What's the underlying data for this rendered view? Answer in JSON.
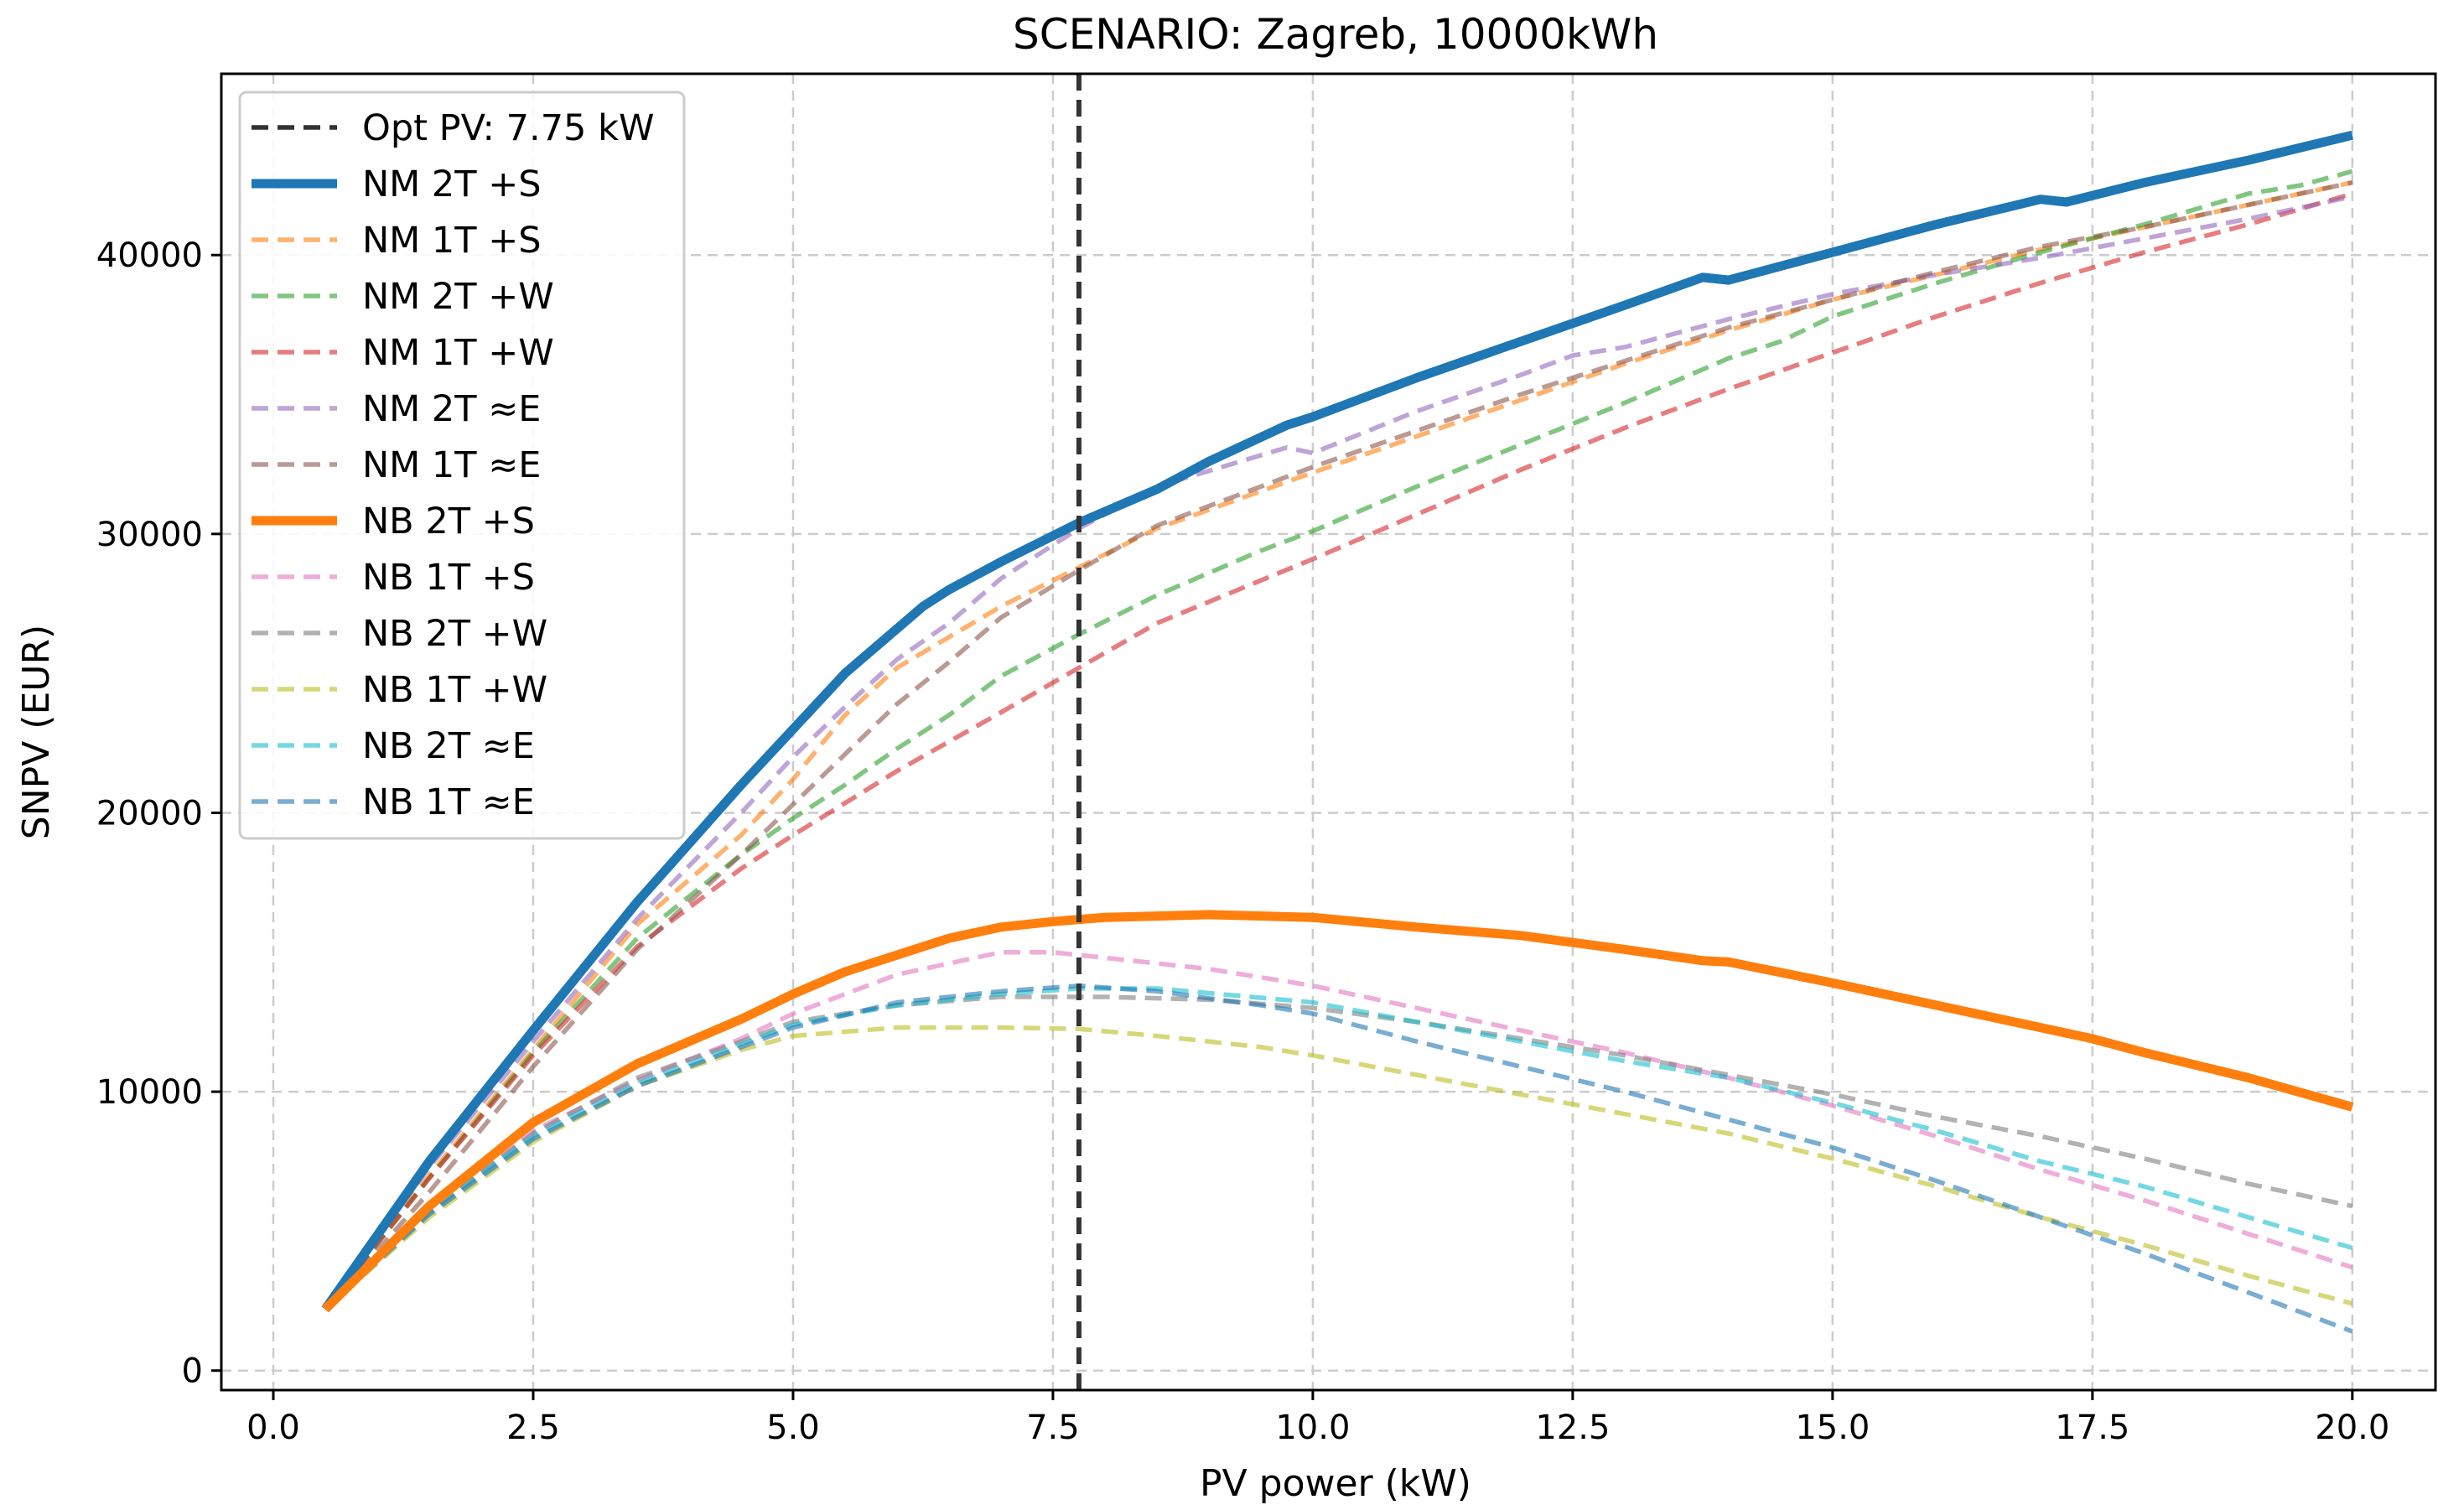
{
  "chart_data": {
    "type": "line",
    "title": "SCENARIO: Zagreb, 10000kWh",
    "xlabel": "PV power (kW)",
    "ylabel": "SNPV (EUR)",
    "xlim": [
      -0.5,
      20.8
    ],
    "ylim": [
      -700,
      46500
    ],
    "xticks": [
      0,
      2.5,
      5,
      7.5,
      10,
      12.5,
      15,
      17.5,
      20
    ],
    "xtick_labels": [
      "0.0",
      "2.5",
      "5.0",
      "7.5",
      "10.0",
      "12.5",
      "15.0",
      "17.5",
      "20.0"
    ],
    "yticks": [
      0,
      10000,
      20000,
      30000,
      40000
    ],
    "ytick_labels": [
      "0",
      "10000",
      "20000",
      "30000",
      "40000"
    ],
    "grid": true,
    "legend_position": "upper-left",
    "opt_line": {
      "label": "Opt PV: 7.75 kW",
      "x": 7.75,
      "color": "#333333"
    },
    "series": [
      {
        "name": "NM 2T +S",
        "color": "#1f77b4",
        "style": "solid",
        "x": [
          0.5,
          1.5,
          2.5,
          3.5,
          4.5,
          5.0,
          5.5,
          6.25,
          6.5,
          7.0,
          7.75,
          8.5,
          9.0,
          9.75,
          10.0,
          11.0,
          12.0,
          13.0,
          13.75,
          14.0,
          15.0,
          16.0,
          17.0,
          17.25,
          18.0,
          19.0,
          20.0
        ],
        "y": [
          2200,
          7500,
          12200,
          16800,
          21000,
          23000,
          25000,
          27400,
          28000,
          29000,
          30400,
          31600,
          32600,
          33900,
          34200,
          35600,
          36900,
          38200,
          39200,
          39100,
          40100,
          41100,
          42000,
          41900,
          42600,
          43400,
          44300
        ]
      },
      {
        "name": "NM 1T +S",
        "color": "#ff7f0e",
        "style": "dashed",
        "x": [
          0.5,
          1.5,
          2.5,
          3.5,
          4.5,
          5.0,
          5.5,
          6.0,
          6.5,
          7.0,
          7.75,
          8.5,
          10.0,
          11.0,
          12.0,
          13.0,
          14.0,
          15.0,
          16.0,
          17.0,
          18.0,
          19.0,
          20.0
        ],
        "y": [
          2200,
          7000,
          11500,
          16000,
          19200,
          21200,
          23500,
          25200,
          26300,
          27400,
          28800,
          30200,
          32200,
          33500,
          34800,
          36100,
          37300,
          38400,
          39300,
          40200,
          41000,
          41800,
          42600
        ]
      },
      {
        "name": "NM 2T +W",
        "color": "#2ca02c",
        "style": "dashed",
        "x": [
          0.5,
          1.5,
          2.5,
          3.5,
          4.5,
          5.0,
          5.5,
          6.0,
          6.5,
          7.0,
          7.75,
          8.5,
          9.5,
          10.0,
          11.0,
          12.0,
          13.0,
          14.0,
          14.5,
          15.0,
          16.0,
          17.0,
          18.0,
          19.0,
          19.5,
          20.0
        ],
        "y": [
          2200,
          6900,
          11400,
          15500,
          18500,
          19800,
          21000,
          22300,
          23500,
          24900,
          26400,
          27800,
          29400,
          30100,
          31700,
          33200,
          34700,
          36300,
          36900,
          37800,
          39000,
          40100,
          41100,
          42200,
          42500,
          43000
        ]
      },
      {
        "name": "NM 1T +W",
        "color": "#d62728",
        "style": "dashed",
        "x": [
          0.5,
          1.5,
          2.5,
          3.5,
          4.5,
          5.0,
          6.0,
          7.0,
          7.75,
          8.5,
          10.0,
          11.0,
          12.0,
          13.0,
          14.0,
          15.0,
          16.0,
          17.0,
          18.0,
          19.0,
          20.0
        ],
        "y": [
          2200,
          6900,
          11300,
          15200,
          18000,
          19200,
          21500,
          23600,
          25200,
          26800,
          29100,
          30700,
          32300,
          33800,
          35200,
          36500,
          37800,
          39000,
          40100,
          41100,
          42200
        ]
      },
      {
        "name": "NM 2T ≈E",
        "color": "#9467bd",
        "style": "dashed",
        "x": [
          0.5,
          1.5,
          2.5,
          3.5,
          4.5,
          5.0,
          5.5,
          6.0,
          6.5,
          7.0,
          7.75,
          8.5,
          9.75,
          10.0,
          11.0,
          12.0,
          12.5,
          13.0,
          14.0,
          15.0,
          16.0,
          17.0,
          18.0,
          19.0,
          20.0
        ],
        "y": [
          2200,
          7300,
          11800,
          16200,
          20000,
          22000,
          23800,
          25500,
          26800,
          28400,
          30200,
          31700,
          33100,
          32900,
          34400,
          35700,
          36400,
          36700,
          37700,
          38600,
          39300,
          39900,
          40600,
          41300,
          42100
        ]
      },
      {
        "name": "NM 1T ≈E",
        "color": "#8c564b",
        "style": "dashed",
        "x": [
          0.5,
          1.5,
          2.5,
          3.5,
          4.5,
          5.0,
          5.5,
          6.0,
          6.5,
          7.0,
          7.75,
          8.5,
          10.0,
          11.0,
          12.0,
          13.0,
          14.0,
          15.0,
          16.0,
          17.0,
          18.0,
          19.0,
          20.0
        ],
        "y": [
          2200,
          6400,
          10900,
          15100,
          18500,
          20300,
          22100,
          23900,
          25400,
          27000,
          28700,
          30300,
          32400,
          33700,
          35000,
          36200,
          37400,
          38400,
          39400,
          40300,
          41000,
          41800,
          42600
        ]
      },
      {
        "name": "NB 2T +S",
        "color": "#ff7f0e",
        "style": "solid",
        "x": [
          0.5,
          1.5,
          2.5,
          3.5,
          4.5,
          5.0,
          5.5,
          6.0,
          6.5,
          7.0,
          7.5,
          8.0,
          9.0,
          10.0,
          11.0,
          12.0,
          13.0,
          13.75,
          14.0,
          15.0,
          16.0,
          17.0,
          17.5,
          18.0,
          19.0,
          20.0
        ],
        "y": [
          2200,
          5900,
          8900,
          11000,
          12600,
          13500,
          14300,
          14900,
          15500,
          15900,
          16100,
          16250,
          16350,
          16250,
          15900,
          15600,
          15100,
          14700,
          14650,
          13900,
          13100,
          12300,
          11900,
          11400,
          10500,
          9450
        ]
      },
      {
        "name": "NB 1T +S",
        "color": "#e377c2",
        "style": "dashed",
        "x": [
          0.5,
          1.5,
          2.5,
          3.5,
          4.5,
          5.0,
          6.0,
          7.0,
          7.5,
          8.0,
          9.0,
          10.0,
          11.0,
          12.0,
          13.0,
          14.0,
          15.0,
          16.0,
          17.0,
          18.0,
          19.0,
          20.0
        ],
        "y": [
          2200,
          5800,
          8600,
          10400,
          11900,
          12800,
          14200,
          15000,
          15000,
          14800,
          14400,
          13800,
          13000,
          12200,
          11400,
          10500,
          9500,
          8400,
          7200,
          6100,
          4900,
          3700
        ]
      },
      {
        "name": "NB 2T +W",
        "color": "#7f7f7f",
        "style": "dashed",
        "x": [
          0.5,
          1.5,
          2.5,
          3.5,
          4.5,
          5.0,
          6.0,
          7.0,
          8.0,
          9.0,
          10.0,
          11.0,
          12.0,
          13.0,
          14.0,
          15.0,
          16.0,
          17.0,
          18.0,
          19.0,
          20.0
        ],
        "y": [
          2200,
          5700,
          8500,
          10500,
          11800,
          12500,
          13100,
          13400,
          13400,
          13300,
          13000,
          12500,
          11900,
          11300,
          10600,
          9900,
          9100,
          8400,
          7600,
          6700,
          5900
        ]
      },
      {
        "name": "NB 1T +W",
        "color": "#bcbd22",
        "style": "dashed",
        "x": [
          0.5,
          1.5,
          2.5,
          3.5,
          4.5,
          5.0,
          6.0,
          7.0,
          7.75,
          8.5,
          9.5,
          10.0,
          11.0,
          12.0,
          13.0,
          14.0,
          15.0,
          16.0,
          17.0,
          18.0,
          19.0,
          20.0
        ],
        "y": [
          2200,
          5500,
          8200,
          10200,
          11500,
          12000,
          12300,
          12300,
          12250,
          12000,
          11600,
          11300,
          10600,
          9900,
          9200,
          8500,
          7600,
          6600,
          5500,
          4500,
          3400,
          2400
        ]
      },
      {
        "name": "NB 2T ≈E",
        "color": "#17becf",
        "style": "dashed",
        "x": [
          0.5,
          1.5,
          2.5,
          3.5,
          4.5,
          5.0,
          6.0,
          7.0,
          7.75,
          8.5,
          10.0,
          11.0,
          12.0,
          13.0,
          14.0,
          15.0,
          16.0,
          17.0,
          18.0,
          19.0,
          20.0
        ],
        "y": [
          2200,
          5700,
          8400,
          10300,
          11700,
          12400,
          13100,
          13500,
          13700,
          13700,
          13200,
          12500,
          11800,
          11100,
          10500,
          9600,
          8600,
          7500,
          6600,
          5500,
          4400
        ]
      },
      {
        "name": "NB 1T ≈E",
        "color": "#1f77b4",
        "style": "dashed",
        "x": [
          0.5,
          1.5,
          2.5,
          3.5,
          4.5,
          5.0,
          6.0,
          7.0,
          7.75,
          8.5,
          9.5,
          10.0,
          11.0,
          12.0,
          13.0,
          14.0,
          15.0,
          16.0,
          17.0,
          18.0,
          19.0,
          20.0
        ],
        "y": [
          2200,
          5600,
          8300,
          10200,
          11600,
          12300,
          13200,
          13600,
          13800,
          13600,
          13100,
          12800,
          11800,
          10900,
          10000,
          9000,
          8000,
          6800,
          5500,
          4200,
          2800,
          1400
        ]
      }
    ]
  }
}
